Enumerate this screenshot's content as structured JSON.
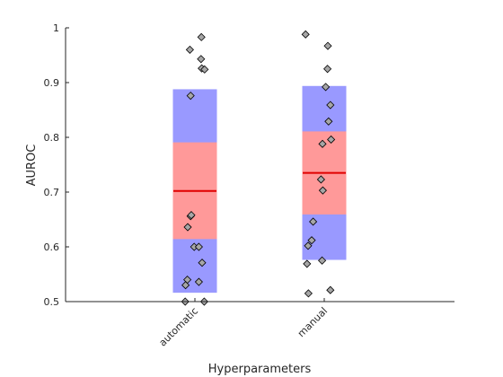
{
  "chart_data": {
    "type": "box-scatter",
    "xlabel": "Hyperparameters",
    "ylabel": "AUROC",
    "categories": [
      "automatic",
      "manual"
    ],
    "ylim": [
      0.5,
      1.0
    ],
    "yticks": [
      0.5,
      0.6,
      0.7,
      0.8,
      0.9,
      1.0
    ],
    "ytick_labels": [
      "0.5",
      "0.6",
      "0.7",
      "0.8",
      "0.9",
      "1"
    ],
    "grid": false,
    "colors": {
      "outer_band": "#9999ff",
      "inner_band": "#ff9999",
      "mean_line": "#e00000",
      "point_fill": "#a6a6a6",
      "point_stroke": "#000000",
      "axis": "#262626"
    },
    "boxes": [
      {
        "category": "automatic",
        "outer": [
          0.517,
          0.887
        ],
        "inner": [
          0.615,
          0.79
        ],
        "mean": 0.702
      },
      {
        "category": "manual",
        "outer": [
          0.577,
          0.893
        ],
        "inner": [
          0.66,
          0.81
        ],
        "mean": 0.735
      }
    ],
    "points": [
      {
        "category": "automatic",
        "jitter": 0.18,
        "y": 0.983
      },
      {
        "category": "automatic",
        "jitter": -0.14,
        "y": 0.96
      },
      {
        "category": "automatic",
        "jitter": 0.17,
        "y": 0.943
      },
      {
        "category": "automatic",
        "jitter": 0.19,
        "y": 0.926
      },
      {
        "category": "automatic",
        "jitter": 0.27,
        "y": 0.924
      },
      {
        "category": "automatic",
        "jitter": -0.12,
        "y": 0.876
      },
      {
        "category": "automatic",
        "jitter": -0.12,
        "y": 0.656
      },
      {
        "category": "automatic",
        "jitter": -0.1,
        "y": 0.658
      },
      {
        "category": "automatic",
        "jitter": -0.2,
        "y": 0.636
      },
      {
        "category": "automatic",
        "jitter": -0.02,
        "y": 0.6
      },
      {
        "category": "automatic",
        "jitter": 0.11,
        "y": 0.6
      },
      {
        "category": "automatic",
        "jitter": 0.2,
        "y": 0.571
      },
      {
        "category": "automatic",
        "jitter": -0.21,
        "y": 0.54
      },
      {
        "category": "automatic",
        "jitter": -0.26,
        "y": 0.53
      },
      {
        "category": "automatic",
        "jitter": 0.11,
        "y": 0.536
      },
      {
        "category": "automatic",
        "jitter": -0.27,
        "y": 0.5
      },
      {
        "category": "automatic",
        "jitter": 0.26,
        "y": 0.5
      },
      {
        "category": "manual",
        "jitter": -0.52,
        "y": 0.988
      },
      {
        "category": "manual",
        "jitter": 0.1,
        "y": 0.967
      },
      {
        "category": "manual",
        "jitter": 0.09,
        "y": 0.925
      },
      {
        "category": "manual",
        "jitter": 0.04,
        "y": 0.892
      },
      {
        "category": "manual",
        "jitter": 0.17,
        "y": 0.859
      },
      {
        "category": "manual",
        "jitter": 0.12,
        "y": 0.829
      },
      {
        "category": "manual",
        "jitter": 0.19,
        "y": 0.796
      },
      {
        "category": "manual",
        "jitter": -0.05,
        "y": 0.788
      },
      {
        "category": "manual",
        "jitter": -0.09,
        "y": 0.723
      },
      {
        "category": "manual",
        "jitter": -0.04,
        "y": 0.703
      },
      {
        "category": "manual",
        "jitter": -0.31,
        "y": 0.646
      },
      {
        "category": "manual",
        "jitter": -0.35,
        "y": 0.612
      },
      {
        "category": "manual",
        "jitter": -0.45,
        "y": 0.602
      },
      {
        "category": "manual",
        "jitter": -0.06,
        "y": 0.575
      },
      {
        "category": "manual",
        "jitter": -0.48,
        "y": 0.569
      },
      {
        "category": "manual",
        "jitter": 0.17,
        "y": 0.521
      },
      {
        "category": "manual",
        "jitter": -0.44,
        "y": 0.515
      }
    ]
  }
}
